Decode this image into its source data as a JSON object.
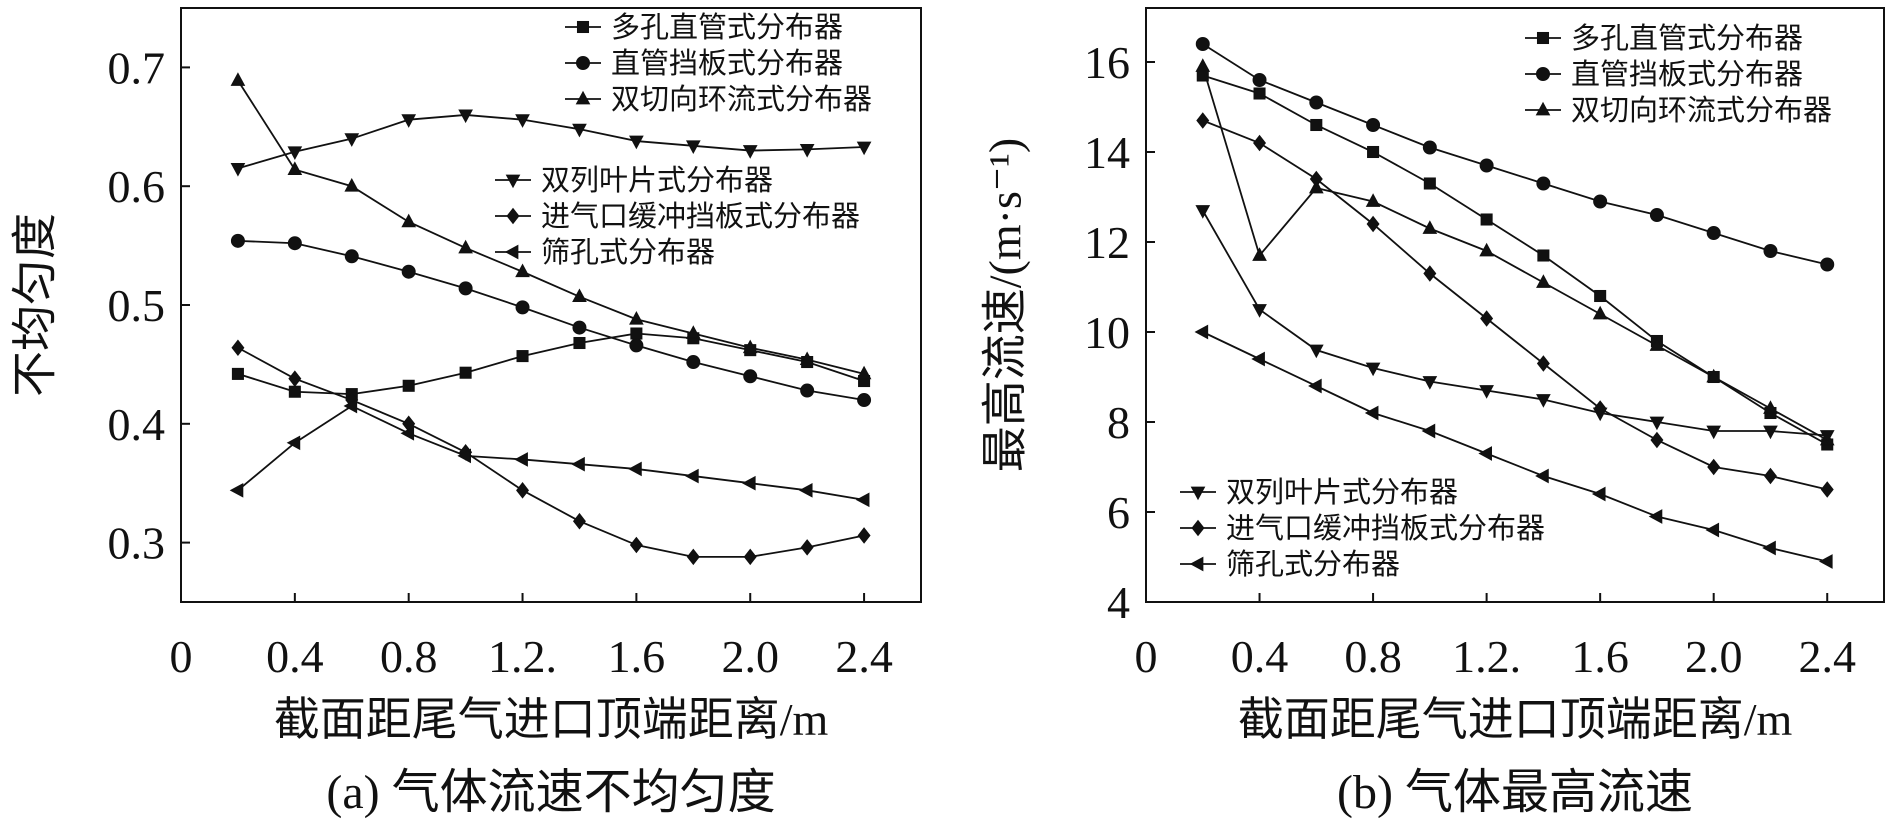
{
  "chart_data": [
    {
      "type": "line",
      "title": "(a) 气体流速不均匀度",
      "xlabel": "截面距尾气进口顶端距离/m",
      "ylabel": "不均匀度",
      "xlim": [
        0,
        2.6
      ],
      "ylim": [
        0.25,
        0.75
      ],
      "x_ticks": [
        "0",
        "0.4",
        "0.8",
        "1.2.",
        "1.6",
        "2.0",
        "2.4"
      ],
      "y_ticks": [
        "0.3",
        "0.4",
        "0.5",
        "0.6",
        "0.7"
      ],
      "grid": false,
      "legend_placement": "top-right",
      "series": [
        {
          "name": "多孔直管式分布器",
          "marker": "square",
          "x": [
            0.2,
            0.4,
            0.6,
            0.8,
            1.0,
            1.2,
            1.4,
            1.6,
            1.8,
            2.0,
            2.2,
            2.4
          ],
          "values": [
            0.442,
            0.427,
            0.425,
            0.432,
            0.443,
            0.457,
            0.468,
            0.476,
            0.472,
            0.462,
            0.452,
            0.436
          ]
        },
        {
          "name": "直管挡板式分布器",
          "marker": "circle",
          "x": [
            0.2,
            0.4,
            0.6,
            0.8,
            1.0,
            1.2,
            1.4,
            1.6,
            1.8,
            2.0,
            2.2,
            2.4
          ],
          "values": [
            0.554,
            0.552,
            0.541,
            0.528,
            0.514,
            0.498,
            0.481,
            0.466,
            0.452,
            0.44,
            0.428,
            0.42
          ]
        },
        {
          "name": "双切向环流式分布器",
          "marker": "triangle-up",
          "x": [
            0.2,
            0.4,
            0.6,
            0.8,
            1.0,
            1.2,
            1.4,
            1.6,
            1.8,
            2.0,
            2.2,
            2.4
          ],
          "values": [
            0.689,
            0.614,
            0.6,
            0.57,
            0.548,
            0.528,
            0.507,
            0.488,
            0.476,
            0.464,
            0.454,
            0.442
          ]
        },
        {
          "name": "双列叶片式分布器",
          "marker": "triangle-down",
          "x": [
            0.2,
            0.4,
            0.6,
            0.8,
            1.0,
            1.2,
            1.4,
            1.6,
            1.8,
            2.0,
            2.2,
            2.4
          ],
          "values": [
            0.615,
            0.629,
            0.64,
            0.656,
            0.66,
            0.656,
            0.648,
            0.638,
            0.634,
            0.63,
            0.631,
            0.633
          ]
        },
        {
          "name": "进气口缓冲挡板式分布器",
          "marker": "diamond",
          "x": [
            0.2,
            0.4,
            0.6,
            0.8,
            1.0,
            1.2,
            1.4,
            1.6,
            1.8,
            2.0,
            2.2,
            2.4
          ],
          "values": [
            0.464,
            0.438,
            0.42,
            0.4,
            0.376,
            0.344,
            0.318,
            0.298,
            0.288,
            0.288,
            0.296,
            0.306
          ]
        },
        {
          "name": "筛孔式分布器",
          "marker": "triangle-left",
          "x": [
            0.2,
            0.4,
            0.6,
            0.8,
            1.0,
            1.2,
            1.4,
            1.6,
            1.8,
            2.0,
            2.2,
            2.4
          ],
          "values": [
            0.344,
            0.384,
            0.415,
            0.392,
            0.373,
            0.37,
            0.366,
            0.362,
            0.356,
            0.35,
            0.344,
            0.336
          ]
        }
      ]
    },
    {
      "type": "line",
      "title": "(b) 气体最高流速",
      "xlabel": "截面距尾气进口顶端距离/m",
      "ylabel": "最高流速/(m·s⁻¹)",
      "xlim": [
        0,
        2.6
      ],
      "ylim": [
        4,
        17.2
      ],
      "x_ticks": [
        "0",
        "0.4",
        "0.8",
        "1.2.",
        "1.6",
        "2.0",
        "2.4"
      ],
      "y_ticks": [
        "4",
        "6",
        "8",
        "10",
        "12",
        "14",
        "16"
      ],
      "grid": false,
      "legend_placement": "top-right",
      "series": [
        {
          "name": "多孔直管式分布器",
          "marker": "square",
          "x": [
            0.2,
            0.4,
            0.6,
            0.8,
            1.0,
            1.2,
            1.4,
            1.6,
            1.8,
            2.0,
            2.2,
            2.4
          ],
          "values": [
            15.7,
            15.3,
            14.6,
            14.0,
            13.3,
            12.5,
            11.7,
            10.8,
            9.8,
            9.0,
            8.2,
            7.5
          ]
        },
        {
          "name": "直管挡板式分布器",
          "marker": "circle",
          "x": [
            0.2,
            0.4,
            0.6,
            0.8,
            1.0,
            1.2,
            1.4,
            1.6,
            1.8,
            2.0,
            2.2,
            2.4
          ],
          "values": [
            16.4,
            15.6,
            15.1,
            14.6,
            14.1,
            13.7,
            13.3,
            12.9,
            12.6,
            12.2,
            11.8,
            11.5
          ]
        },
        {
          "name": "双切向环流式分布器",
          "marker": "triangle-up",
          "x": [
            0.2,
            0.4,
            0.6,
            0.8,
            1.0,
            1.2,
            1.4,
            1.6,
            1.8,
            2.0,
            2.2,
            2.4
          ],
          "values": [
            15.9,
            11.7,
            13.2,
            12.9,
            12.3,
            11.8,
            11.1,
            10.4,
            9.7,
            9.0,
            8.3,
            7.6
          ]
        },
        {
          "name": "双列叶片式分布器",
          "marker": "triangle-down",
          "x": [
            0.2,
            0.4,
            0.6,
            0.8,
            1.0,
            1.2,
            1.4,
            1.6,
            1.8,
            2.0,
            2.2,
            2.4
          ],
          "values": [
            12.7,
            10.5,
            9.6,
            9.2,
            8.9,
            8.7,
            8.5,
            8.2,
            8.0,
            7.8,
            7.8,
            7.7
          ]
        },
        {
          "name": "进气口缓冲挡板式分布器",
          "marker": "diamond",
          "x": [
            0.2,
            0.4,
            0.6,
            0.8,
            1.0,
            1.2,
            1.4,
            1.6,
            1.8,
            2.0,
            2.2,
            2.4
          ],
          "values": [
            14.7,
            14.2,
            13.4,
            12.4,
            11.3,
            10.3,
            9.3,
            8.3,
            7.6,
            7.0,
            6.8,
            6.5
          ]
        },
        {
          "name": "筛孔式分布器",
          "marker": "triangle-left",
          "x": [
            0.2,
            0.4,
            0.6,
            0.8,
            1.0,
            1.2,
            1.4,
            1.6,
            1.8,
            2.0,
            2.2,
            2.4
          ],
          "values": [
            10.0,
            9.4,
            8.8,
            8.2,
            7.8,
            7.3,
            6.8,
            6.4,
            5.9,
            5.6,
            5.2,
            4.9
          ]
        }
      ]
    }
  ]
}
